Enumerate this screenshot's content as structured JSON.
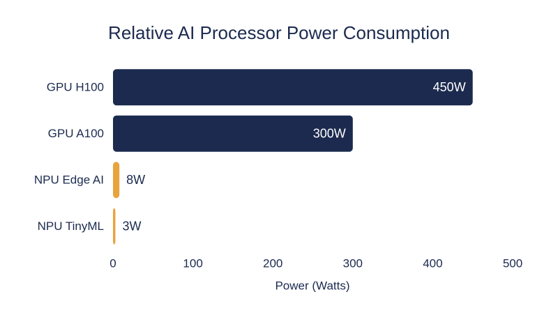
{
  "chart_data": {
    "type": "bar",
    "orientation": "horizontal",
    "title": "Relative AI Processor Power Consumption",
    "categories": [
      "GPU H100",
      "GPU A100",
      "NPU Edge AI",
      "NPU TinyML"
    ],
    "values": [
      450,
      300,
      8,
      3
    ],
    "value_labels": [
      "450W",
      "300W",
      "8W",
      "3W"
    ],
    "colors": [
      "#1b2a4e",
      "#1b2a4e",
      "#e8a33d",
      "#e8a33d"
    ],
    "xlabel": "Power (Watts)",
    "xlim": [
      0,
      500
    ],
    "xticks": [
      0,
      100,
      200,
      300,
      400,
      500
    ],
    "grid": false
  }
}
